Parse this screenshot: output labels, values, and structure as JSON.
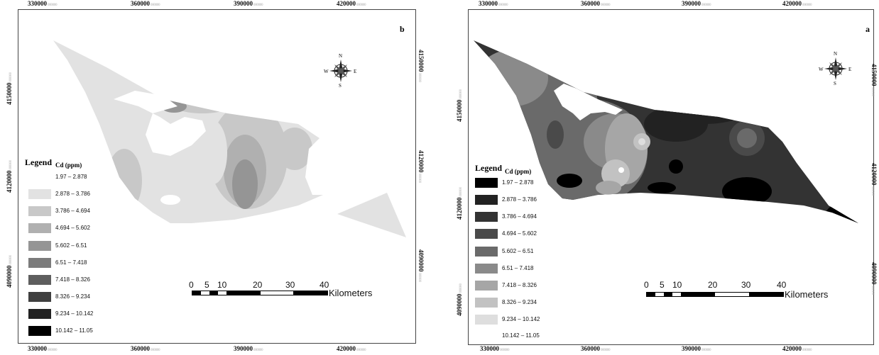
{
  "panel_b": {
    "label": "b",
    "top_ticks": [
      "330000",
      "360000",
      "390000",
      "420000"
    ],
    "bottom_ticks": [
      "330000",
      "360000",
      "390000",
      "420000"
    ],
    "left_ticks": [
      "4150000",
      "4120000",
      "4090000"
    ],
    "right_ticks": [
      "4150000",
      "4120000",
      "4090000"
    ],
    "legend_title": "Legend",
    "legend_subtitle": "Cd (ppm)",
    "legend_items": [
      {
        "label": "1.97 – 2.878",
        "color": "#ffffff"
      },
      {
        "label": "2.878 – 3.786",
        "color": "#e2e2e2"
      },
      {
        "label": "3.786 – 4.694",
        "color": "#c8c8c8"
      },
      {
        "label": "4.694 – 5.602",
        "color": "#b0b0b0"
      },
      {
        "label": "5.602 – 6.51",
        "color": "#959595"
      },
      {
        "label": "6.51 – 7.418",
        "color": "#7b7b7b"
      },
      {
        "label": "7.418 – 8.326",
        "color": "#5e5e5e"
      },
      {
        "label": "8.326 – 9.234",
        "color": "#3f3f3f"
      },
      {
        "label": "9.234 – 10.142",
        "color": "#222222"
      },
      {
        "label": "10.142 – 11.05",
        "color": "#000000"
      }
    ],
    "scale_numbers": [
      "0",
      "5",
      "10",
      "20",
      "30",
      "40"
    ],
    "scale_unit": "Kilometers",
    "compass": {
      "n": "N",
      "s": "S",
      "e": "E",
      "w": "W"
    }
  },
  "panel_a": {
    "label": "a",
    "top_ticks": [
      "330000",
      "360000",
      "390000",
      "420000"
    ],
    "bottom_ticks": [
      "330000",
      "360000",
      "390000",
      "420000"
    ],
    "left_ticks": [
      "4150000",
      "4120000",
      "4090000"
    ],
    "right_ticks": [
      "4150000",
      "4120000",
      "4090000"
    ],
    "legend_title": "Legend",
    "legend_subtitle": "Cd (ppm)",
    "legend_items": [
      {
        "label": "1.97 – 2.878",
        "color": "#000000"
      },
      {
        "label": "2.878 – 3.786",
        "color": "#222222"
      },
      {
        "label": "3.786 – 4.694",
        "color": "#333333"
      },
      {
        "label": "4.694 – 5.602",
        "color": "#4a4a4a"
      },
      {
        "label": "5.602 – 6.51",
        "color": "#6a6a6a"
      },
      {
        "label": "6.51 – 7.418",
        "color": "#8a8a8a"
      },
      {
        "label": "7.418 – 8.326",
        "color": "#a6a6a6"
      },
      {
        "label": "8.326 – 9.234",
        "color": "#c2c2c2"
      },
      {
        "label": "9.234 – 10.142",
        "color": "#dedede"
      },
      {
        "label": "10.142 – 11.05",
        "color": "#ffffff"
      }
    ],
    "scale_numbers": [
      "0",
      "5",
      "10",
      "20",
      "30",
      "40"
    ],
    "scale_unit": "Kilometers",
    "compass": {
      "n": "N",
      "s": "S",
      "e": "E",
      "w": "W"
    }
  }
}
